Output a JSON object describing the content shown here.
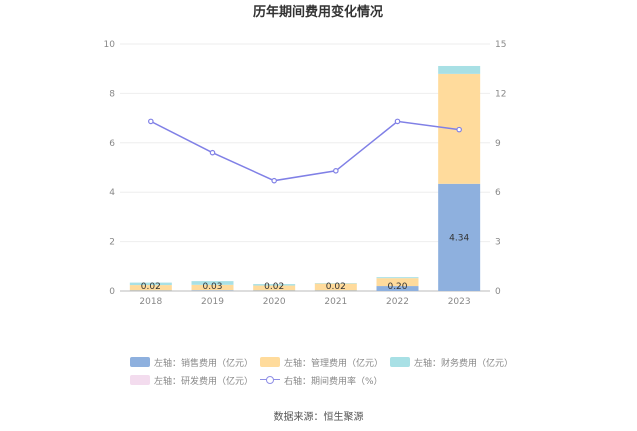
{
  "chart_data": {
    "type": "bar",
    "title": "历年期间费用变化情况",
    "categories": [
      "2018",
      "2019",
      "2020",
      "2021",
      "2022",
      "2023"
    ],
    "series": [
      {
        "name": "左轴：销售费用（亿元）",
        "axis": "left",
        "type": "bar",
        "color": "#8eb0de",
        "values": [
          0.02,
          0.03,
          0.02,
          0.02,
          0.2,
          4.34
        ],
        "labels": [
          "0.02",
          "0.03",
          "0.02",
          "0.02",
          "0.20",
          "4.34"
        ]
      },
      {
        "name": "左轴：管理费用（亿元）",
        "axis": "left",
        "type": "bar",
        "color": "#ffdb9c",
        "values": [
          0.22,
          0.22,
          0.2,
          0.28,
          0.32,
          4.45
        ]
      },
      {
        "name": "左轴：财务费用（亿元）",
        "axis": "left",
        "type": "bar",
        "color": "#a8e0e5",
        "values": [
          0.1,
          0.15,
          0.06,
          0.02,
          0.04,
          0.32
        ]
      },
      {
        "name": "左轴：研发费用（亿元）",
        "axis": "left",
        "type": "bar",
        "color": "#f3dcee",
        "values": [
          0,
          0,
          0,
          0,
          0,
          0
        ]
      },
      {
        "name": "右轴：期间费用率（%）",
        "axis": "right",
        "type": "line",
        "color": "#8080e6",
        "values": [
          10.3,
          8.4,
          6.7,
          7.3,
          10.3,
          9.8
        ]
      }
    ],
    "left_axis": {
      "min": 0,
      "max": 10,
      "ticks": [
        "0",
        "2",
        "4",
        "6",
        "8",
        "10"
      ]
    },
    "right_axis": {
      "min": 0,
      "max": 15,
      "ticks": [
        "0",
        "3",
        "6",
        "9",
        "12",
        "15"
      ]
    },
    "grid": true,
    "legend": "bottom"
  },
  "source": "数据来源：恒生聚源"
}
